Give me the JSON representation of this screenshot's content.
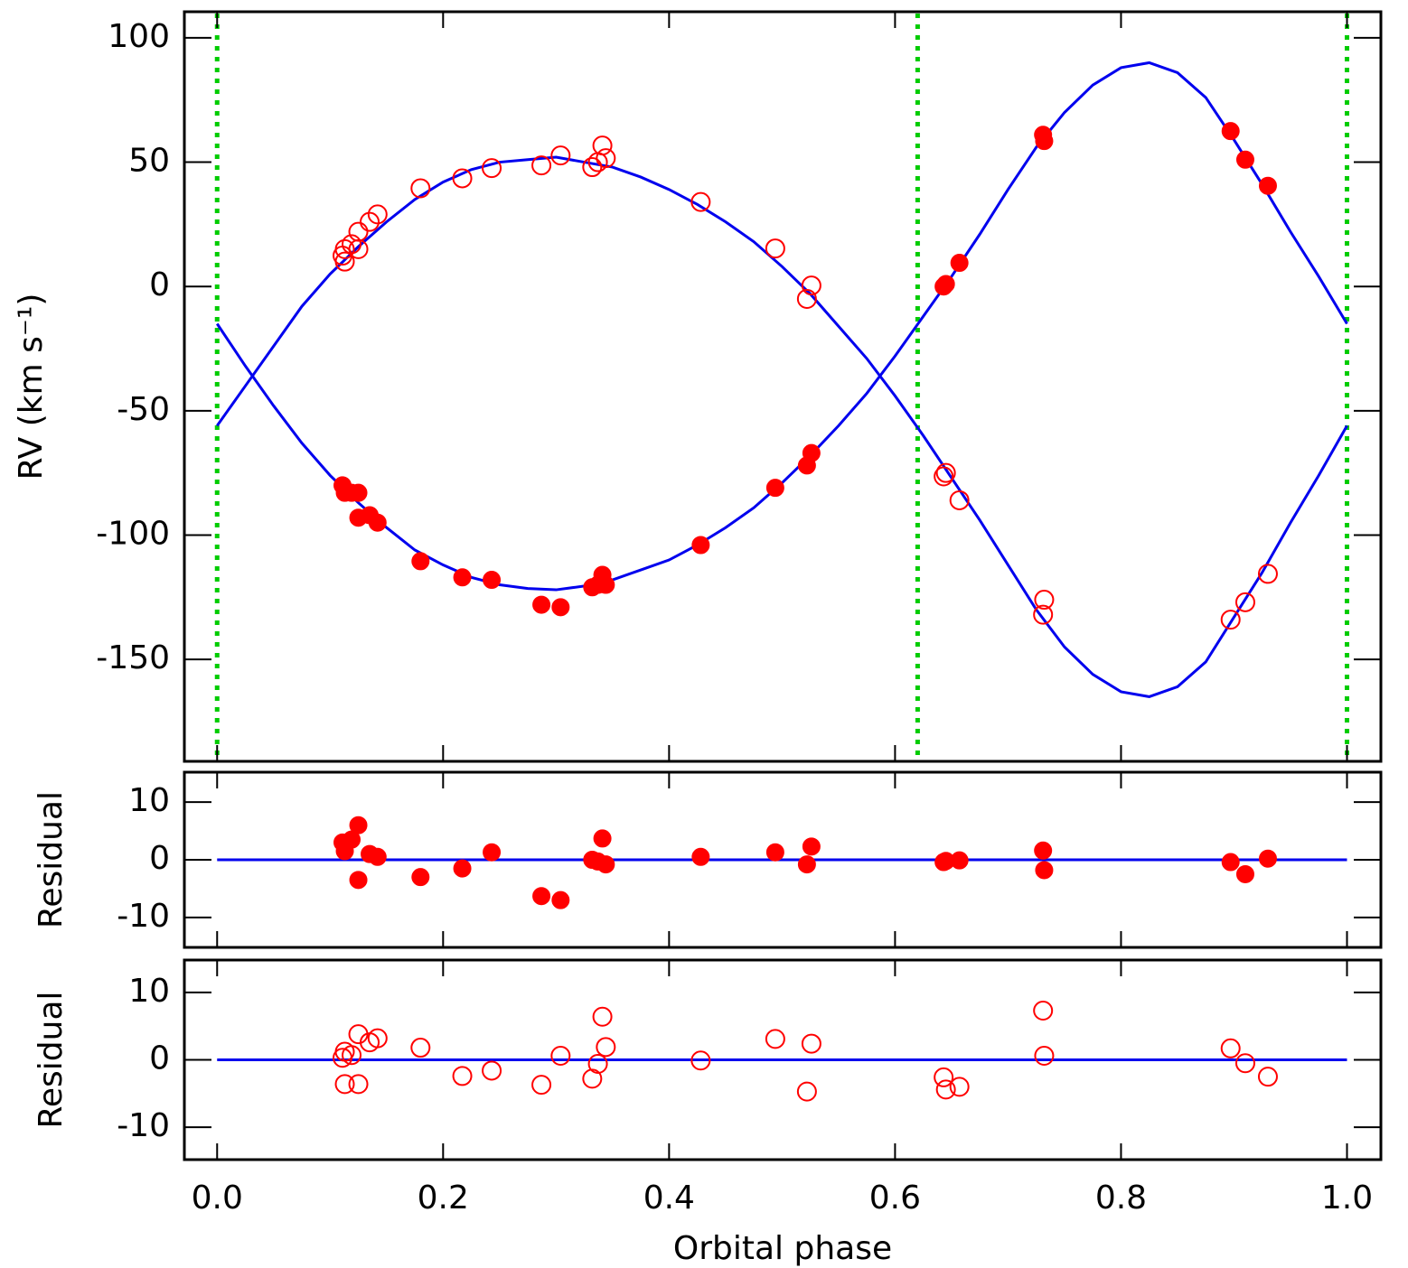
{
  "chart_data": [
    {
      "type": "scatter",
      "ylabel": "RV (km s⁻¹)",
      "xlim": [
        -0.029,
        1.03
      ],
      "ylim": [
        -191,
        110.5
      ],
      "xticks": [
        0,
        0.2,
        0.4,
        0.6,
        0.8,
        1
      ],
      "yticks": [
        -150,
        -100,
        -50,
        0,
        50,
        100
      ],
      "vlines": [
        0,
        0.62,
        1
      ],
      "vline_color": "#00cc00",
      "series": [
        {
          "marker": "line",
          "color": "#0000ee",
          "x": [
            0,
            0.025,
            0.05,
            0.075,
            0.1,
            0.125,
            0.15,
            0.175,
            0.2,
            0.225,
            0.25,
            0.275,
            0.3,
            0.325,
            0.35,
            0.375,
            0.4,
            0.425,
            0.45,
            0.475,
            0.5,
            0.525,
            0.55,
            0.575,
            0.6,
            0.625,
            0.65,
            0.675,
            0.7,
            0.725,
            0.75,
            0.775,
            0.8,
            0.825,
            0.85,
            0.875,
            0.9,
            0.925,
            0.95,
            0.975,
            1
          ],
          "values": [
            -15,
            -32,
            -48,
            -63,
            -76,
            -87,
            -97,
            -106,
            -112,
            -117,
            -120,
            -121.5,
            -122,
            -120.5,
            -118,
            -114,
            -110,
            -104,
            -97,
            -89,
            -79,
            -68,
            -56,
            -43,
            -28,
            -12,
            4,
            21,
            39,
            56,
            70,
            81,
            88,
            90,
            86,
            76,
            59,
            41,
            22,
            4,
            -15
          ]
        },
        {
          "marker": "line",
          "color": "#0000ee",
          "x": [
            0,
            0.025,
            0.05,
            0.075,
            0.1,
            0.125,
            0.15,
            0.175,
            0.2,
            0.225,
            0.25,
            0.275,
            0.3,
            0.325,
            0.35,
            0.375,
            0.4,
            0.425,
            0.45,
            0.475,
            0.5,
            0.525,
            0.55,
            0.575,
            0.6,
            0.625,
            0.65,
            0.675,
            0.7,
            0.725,
            0.75,
            0.775,
            0.8,
            0.825,
            0.85,
            0.875,
            0.9,
            0.925,
            0.95,
            0.975,
            1
          ],
          "values": [
            -56,
            -40,
            -24,
            -8,
            5,
            16,
            26,
            35,
            42,
            47,
            50,
            51,
            52,
            50,
            48,
            44,
            39,
            33,
            26,
            18,
            8,
            -3,
            -16,
            -29,
            -44,
            -60,
            -77,
            -94,
            -112,
            -130,
            -145,
            -156,
            -163,
            -165,
            -161,
            -151,
            -133,
            -115,
            -95,
            -76,
            -56
          ]
        },
        {
          "marker": "filled",
          "color": "#ff0000",
          "x": [
            0.111,
            0.113,
            0.119,
            0.125,
            0.125,
            0.135,
            0.142,
            0.18,
            0.217,
            0.243,
            0.287,
            0.304,
            0.332,
            0.337,
            0.341,
            0.344,
            0.428,
            0.494,
            0.522,
            0.526,
            0.643,
            0.645,
            0.657,
            0.731,
            0.732,
            0.897,
            0.91,
            0.93
          ],
          "values": [
            -80,
            -83,
            -83,
            -83,
            -93,
            -92,
            -95,
            -110.5,
            -117,
            -118,
            -128,
            -129,
            -121,
            -120,
            -116,
            -120,
            -104,
            -81,
            -72,
            -67,
            0,
            1,
            9.5,
            61,
            58.5,
            62.5,
            51,
            40.5
          ]
        },
        {
          "marker": "open",
          "color": "#ff0000",
          "x": [
            0.111,
            0.113,
            0.113,
            0.119,
            0.125,
            0.125,
            0.135,
            0.142,
            0.18,
            0.217,
            0.243,
            0.287,
            0.304,
            0.332,
            0.337,
            0.341,
            0.344,
            0.428,
            0.494,
            0.522,
            0.526,
            0.643,
            0.645,
            0.657,
            0.731,
            0.732,
            0.897,
            0.91,
            0.93
          ],
          "values": [
            12.4,
            15,
            10,
            17,
            22,
            15,
            26,
            29,
            39.5,
            43.5,
            47.6,
            48.7,
            52.7,
            48,
            50,
            56.7,
            51.6,
            34,
            15.3,
            -5,
            0.4,
            -76.4,
            -75,
            -86,
            -132,
            -126,
            -134,
            -127,
            -115.6
          ]
        }
      ]
    },
    {
      "type": "scatter",
      "ylabel": "Residual",
      "xlim": [
        -0.029,
        1.03
      ],
      "ylim": [
        -15.2,
        15.2
      ],
      "xticks": [
        0,
        0.2,
        0.4,
        0.6,
        0.8,
        1
      ],
      "yticks": [
        -10,
        0,
        10
      ],
      "series": [
        {
          "marker": "line",
          "color": "#0000ee",
          "x": [
            0,
            1
          ],
          "values": [
            0,
            0
          ]
        },
        {
          "marker": "filled",
          "color": "#ff0000",
          "x": [
            0.111,
            0.113,
            0.119,
            0.125,
            0.125,
            0.135,
            0.142,
            0.18,
            0.217,
            0.243,
            0.287,
            0.304,
            0.332,
            0.337,
            0.341,
            0.344,
            0.428,
            0.494,
            0.522,
            0.526,
            0.643,
            0.645,
            0.657,
            0.731,
            0.732,
            0.897,
            0.91,
            0.93
          ],
          "values": [
            3,
            1.5,
            3.5,
            6,
            -3.5,
            1,
            0.5,
            -3,
            -1.5,
            1.3,
            -6.3,
            -7,
            0,
            -0.3,
            3.7,
            -0.8,
            0.5,
            1.3,
            -0.8,
            2.3,
            -0.4,
            -0.2,
            -0.1,
            1.6,
            -1.8,
            -0.4,
            -2.5,
            0.2
          ]
        }
      ]
    },
    {
      "type": "scatter",
      "ylabel": "Residual",
      "xlabel": "Orbital phase",
      "xlim": [
        -0.029,
        1.03
      ],
      "ylim": [
        -14.8,
        14.8
      ],
      "xticks": [
        {
          "value": 0,
          "label": "0.0"
        },
        {
          "value": 0.2,
          "label": "0.2"
        },
        {
          "value": 0.4,
          "label": "0.4"
        },
        {
          "value": 0.6,
          "label": "0.6"
        },
        {
          "value": 0.8,
          "label": "0.8"
        },
        {
          "value": 1,
          "label": "1.0"
        }
      ],
      "yticks": [
        -10,
        0,
        10
      ],
      "series": [
        {
          "marker": "line",
          "color": "#0000ee",
          "x": [
            0,
            1
          ],
          "values": [
            0,
            0
          ]
        },
        {
          "marker": "open",
          "color": "#ff0000",
          "x": [
            0.111,
            0.113,
            0.113,
            0.119,
            0.125,
            0.125,
            0.135,
            0.142,
            0.18,
            0.217,
            0.243,
            0.287,
            0.304,
            0.332,
            0.337,
            0.341,
            0.344,
            0.428,
            0.494,
            0.522,
            0.526,
            0.643,
            0.645,
            0.657,
            0.731,
            0.732,
            0.897,
            0.91,
            0.93
          ],
          "values": [
            0.3,
            1.2,
            -3.6,
            0.7,
            3.8,
            -3.6,
            2.6,
            3.2,
            1.8,
            -2.4,
            -1.6,
            -3.7,
            0.6,
            -2.8,
            -0.6,
            6.4,
            1.9,
            -0.1,
            3.1,
            -4.7,
            2.4,
            -2.6,
            -4.4,
            -4.0,
            7.3,
            0.6,
            1.7,
            -0.5,
            -2.5
          ]
        }
      ]
    }
  ]
}
